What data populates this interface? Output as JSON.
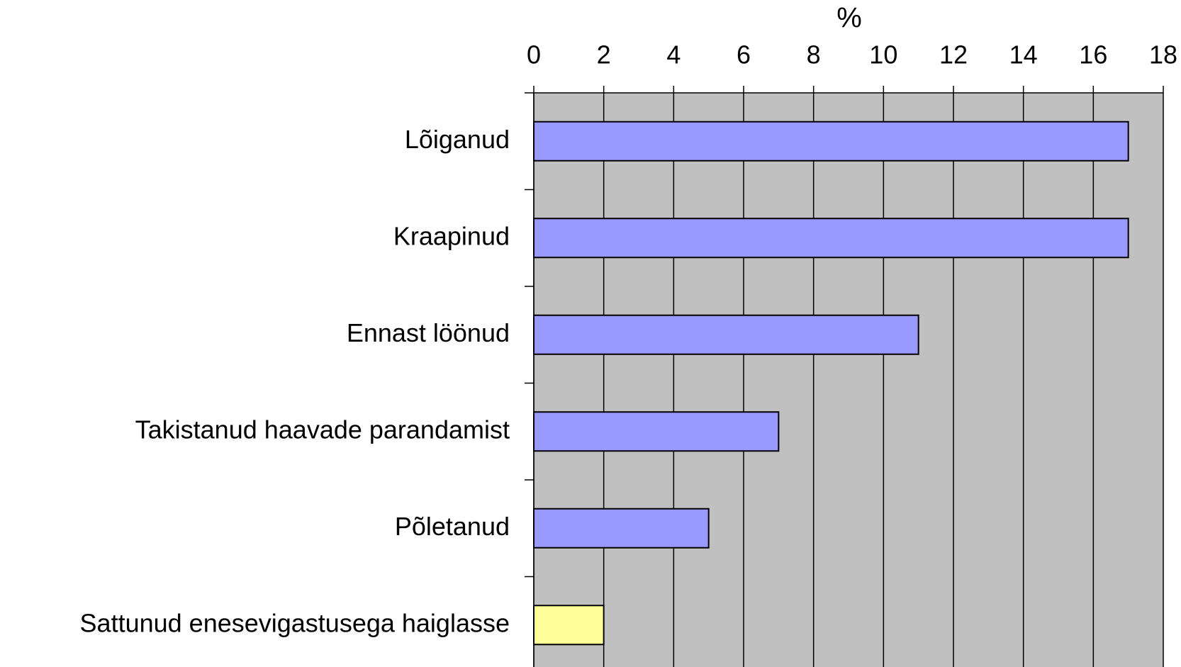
{
  "chart_data": {
    "type": "barh",
    "x_label": "%",
    "categories": [
      "Lõiganud",
      "Kraapinud",
      "Ennast löönud",
      "Takistanud haavade parandamist",
      "Põletanud",
      "Sattunud enesevigastusega haiglasse"
    ],
    "values": [
      17,
      17,
      11,
      7,
      5,
      2
    ],
    "colors": [
      "#9999ff",
      "#9999ff",
      "#9999ff",
      "#9999ff",
      "#9999ff",
      "#ffff99"
    ],
    "xlim": [
      0,
      18
    ],
    "xticks": [
      0,
      2,
      4,
      6,
      8,
      10,
      12,
      14,
      16,
      18
    ],
    "grid": true,
    "background": "#c0c0c0"
  }
}
